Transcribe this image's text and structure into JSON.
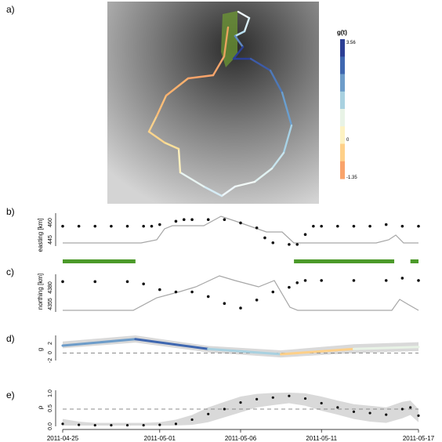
{
  "colors": {
    "track_gray": "#a6a6a6",
    "segment_green": "#4c9a2a",
    "band_gray": "#d9d9d9",
    "dashed": "#8c8c8c",
    "point_fill": "#111111"
  },
  "chart_data": [
    {
      "type": "map",
      "panel_label": "a)",
      "legend": {
        "title": "g(t)",
        "max_label": "3.56",
        "mid_label": "0",
        "min_label": "-1.35",
        "colors": [
          "#2c3f95",
          "#3f67b0",
          "#6d9cc9",
          "#a9d1e0",
          "#e8f3e6",
          "#fdf2c2",
          "#fed089",
          "#f9a36a"
        ]
      }
    },
    {
      "type": "scatter",
      "panel_label": "b)",
      "ylabel": "easting [km]",
      "yticks": [
        "445",
        "460"
      ],
      "x_range": [
        "2011-04-25",
        "2011-05-17"
      ],
      "points": [
        [
          0,
          456
        ],
        [
          1,
          456
        ],
        [
          2,
          456
        ],
        [
          3,
          456
        ],
        [
          4,
          456
        ],
        [
          5,
          456
        ],
        [
          5.5,
          456
        ],
        [
          6,
          457
        ],
        [
          7,
          459
        ],
        [
          7.5,
          460
        ],
        [
          8,
          460
        ],
        [
          9,
          460
        ],
        [
          10,
          460
        ],
        [
          11,
          458
        ],
        [
          12,
          455
        ],
        [
          12.5,
          449
        ],
        [
          13,
          446
        ],
        [
          14,
          445
        ],
        [
          14.5,
          445
        ],
        [
          15,
          451
        ],
        [
          15.5,
          456
        ],
        [
          16,
          456
        ],
        [
          17,
          456
        ],
        [
          18,
          456
        ],
        [
          19,
          456
        ],
        [
          20,
          457
        ],
        [
          21,
          456
        ],
        [
          22,
          456
        ]
      ]
    },
    {
      "type": "segments",
      "segments": [
        [
          0,
          4.5
        ],
        [
          14.3,
          20.5
        ],
        [
          21.5,
          22
        ]
      ]
    },
    {
      "type": "scatter",
      "panel_label": "c)",
      "ylabel": "northing [km]",
      "yticks": [
        "4355",
        "4380"
      ],
      "x_range": [
        "2011-04-25",
        "2011-05-17"
      ],
      "points": [
        [
          0,
          4379
        ],
        [
          2,
          4379
        ],
        [
          4,
          4379
        ],
        [
          5,
          4377
        ],
        [
          6,
          4372
        ],
        [
          7,
          4370
        ],
        [
          8,
          4370
        ],
        [
          9,
          4366
        ],
        [
          10,
          4360
        ],
        [
          11,
          4356
        ],
        [
          12,
          4363
        ],
        [
          13,
          4370
        ],
        [
          14,
          4374
        ],
        [
          14.5,
          4378
        ],
        [
          15,
          4380
        ],
        [
          16,
          4380
        ],
        [
          18,
          4380
        ],
        [
          20,
          4380
        ],
        [
          21,
          4382
        ],
        [
          22,
          4380
        ]
      ]
    },
    {
      "type": "line",
      "panel_label": "d)",
      "ylabel": "g",
      "yticks": [
        "-2",
        "0",
        "2"
      ],
      "x": [
        0,
        4.5,
        9,
        13.5,
        18,
        22
      ],
      "values": [
        1.2,
        3.1,
        0.2,
        -1.35,
        0.2,
        0.8
      ],
      "band_low": [
        0.4,
        2.1,
        -0.8,
        -2.3,
        -1.0,
        -0.4
      ],
      "band_high": [
        2.4,
        4.2,
        1.1,
        -0.2,
        1.6,
        2.2
      ],
      "reference_line": -1
    },
    {
      "type": "scatter",
      "panel_label": "e)",
      "ylabel": "ρ",
      "yticks": [
        "0.0",
        "0.5",
        "1.0"
      ],
      "xticks": [
        "2011-04-25",
        "2011-05-01",
        "2011-05-06",
        "2011-05-11",
        "2011-05-17"
      ],
      "reference_line": 0.5,
      "points": [
        [
          0,
          0.05
        ],
        [
          1,
          0.02
        ],
        [
          2,
          0.01
        ],
        [
          3,
          0.01
        ],
        [
          4,
          0.01
        ],
        [
          5,
          0.01
        ],
        [
          6,
          0.02
        ],
        [
          7,
          0.05
        ],
        [
          8,
          0.18
        ],
        [
          9,
          0.35
        ],
        [
          10,
          0.5
        ],
        [
          11,
          0.7
        ],
        [
          12,
          0.8
        ],
        [
          13,
          0.85
        ],
        [
          14,
          0.9
        ],
        [
          15,
          0.82
        ],
        [
          16,
          0.68
        ],
        [
          17,
          0.55
        ],
        [
          18,
          0.42
        ],
        [
          19,
          0.38
        ],
        [
          20,
          0.33
        ],
        [
          21,
          0.5
        ],
        [
          21.5,
          0.55
        ],
        [
          22,
          0.3
        ]
      ],
      "band_low": [
        0,
        0,
        0,
        0,
        0,
        0,
        0,
        0,
        0.02,
        0.1,
        0.25,
        0.4,
        0.55,
        0.62,
        0.68,
        0.6,
        0.45,
        0.33,
        0.2,
        0.12,
        0.08,
        0.22,
        0.32,
        0.1
      ],
      "band_high": [
        0.2,
        0.12,
        0.08,
        0.08,
        0.08,
        0.08,
        0.1,
        0.18,
        0.32,
        0.55,
        0.72,
        0.88,
        0.96,
        0.99,
        1.0,
        0.98,
        0.88,
        0.76,
        0.65,
        0.6,
        0.55,
        0.72,
        0.76,
        0.5
      ]
    }
  ]
}
